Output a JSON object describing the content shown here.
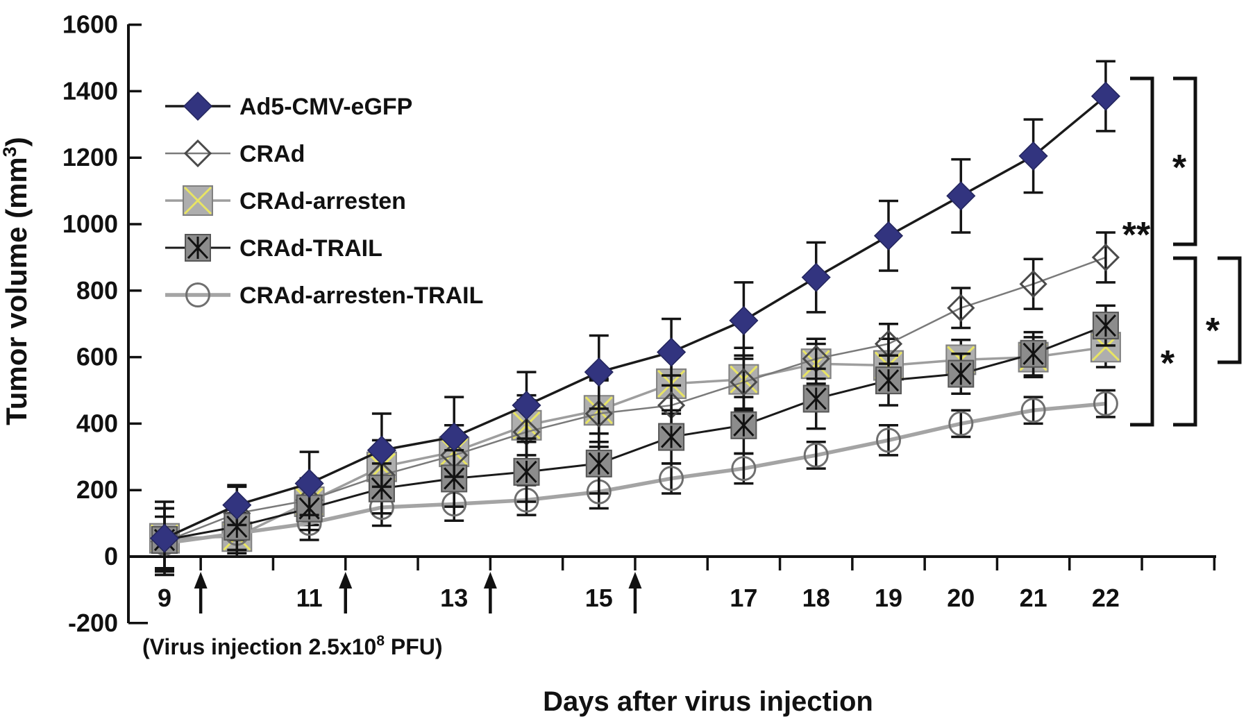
{
  "figure": {
    "y_axis_title": {
      "prefix": "Tumor volume (mm",
      "sup": "3",
      "suffix": ")"
    },
    "x_axis_title": "Days after virus injection",
    "injection_note": {
      "prefix": "(Virus injection 2.5x10",
      "sup": "8",
      "suffix": " PFU)"
    }
  },
  "chart_data": {
    "type": "line",
    "title": "",
    "xlabel": "Days after virus injection",
    "ylabel": "Tumor volume (mm3)",
    "x": [
      9,
      10,
      11,
      12,
      13,
      14,
      15,
      16,
      17,
      18,
      19,
      20,
      21,
      22
    ],
    "x_tick_labels": [
      9,
      11,
      13,
      15,
      17,
      18,
      19,
      20,
      21,
      22
    ],
    "y_ticks": [
      -200,
      0,
      200,
      400,
      600,
      800,
      1000,
      1200,
      1400,
      1600
    ],
    "ylim": [
      -200,
      1600
    ],
    "xlim_days": [
      8.5,
      23.5
    ],
    "grid": false,
    "legend_position": "upper-left-inside",
    "injection_days": [
      9.5,
      11.5,
      13.5,
      15.5
    ],
    "series": [
      {
        "name": "Ad5-CMV-eGFP",
        "marker": "filled-diamond",
        "marker_fill": "#32347f",
        "marker_stroke": "#23255c",
        "line_color": "#1a1a1a",
        "line_width": 3.5,
        "values": [
          55,
          155,
          220,
          320,
          360,
          455,
          555,
          615,
          710,
          840,
          965,
          1085,
          1205,
          1385
        ],
        "errors": [
          110,
          60,
          95,
          110,
          120,
          100,
          110,
          100,
          115,
          105,
          105,
          110,
          110,
          105
        ]
      },
      {
        "name": "CRAd",
        "marker": "open-diamond",
        "marker_fill": "none",
        "marker_stroke": "#4a4a4a",
        "line_color": "#7a7a7a",
        "line_width": 2.5,
        "values": [
          45,
          130,
          170,
          245,
          305,
          375,
          430,
          455,
          525,
          595,
          640,
          748,
          820,
          900
        ],
        "errors": [
          100,
          80,
          60,
          70,
          90,
          95,
          100,
          90,
          80,
          60,
          60,
          60,
          75,
          75
        ]
      },
      {
        "name": "CRAd-arresten",
        "marker": "square-yellow-x",
        "marker_fill": "#aeaeae",
        "marker_stroke": "#808080",
        "x_color": "#e8e464",
        "line_color": "#9e9e9e",
        "line_width": 3.5,
        "values": [
          55,
          60,
          165,
          270,
          315,
          395,
          440,
          520,
          533,
          580,
          575,
          592,
          600,
          630
        ],
        "errors": [
          90,
          60,
          70,
          80,
          80,
          90,
          95,
          90,
          95,
          60,
          80,
          60,
          60,
          60
        ]
      },
      {
        "name": "CRAd-TRAIL",
        "marker": "square-asterisk",
        "marker_fill": "#8c8c8c",
        "marker_stroke": "#565656",
        "x_color": "#111111",
        "line_color": "#1a1a1a",
        "line_width": 3,
        "values": [
          50,
          90,
          145,
          205,
          235,
          255,
          280,
          360,
          395,
          475,
          530,
          550,
          610,
          695
        ],
        "errors": [
          95,
          70,
          65,
          75,
          85,
          90,
          90,
          80,
          85,
          90,
          75,
          60,
          65,
          60
        ]
      },
      {
        "name": "CRAd-arresten-TRAIL",
        "marker": "open-circle",
        "marker_fill": "none",
        "marker_stroke": "#6f6f6f",
        "line_color": "#a4a4a4",
        "line_width": 5.5,
        "values": [
          40,
          70,
          100,
          148,
          158,
          170,
          195,
          235,
          265,
          305,
          350,
          400,
          440,
          460
        ],
        "errors": [
          80,
          60,
          50,
          55,
          50,
          45,
          50,
          45,
          45,
          40,
          45,
          40,
          40,
          40
        ]
      }
    ],
    "error_bar_color": "#141414",
    "significance": [
      {
        "label": "**"
      },
      {
        "label": "*"
      },
      {
        "label": "*"
      },
      {
        "label": "*"
      }
    ]
  }
}
